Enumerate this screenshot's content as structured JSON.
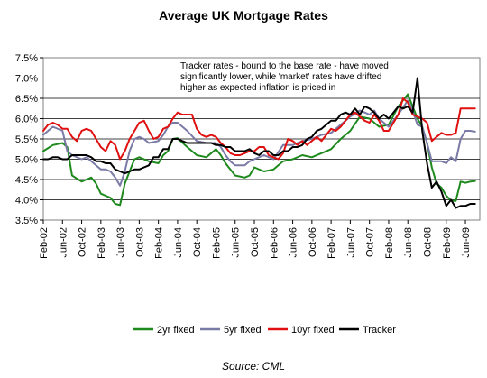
{
  "chart_data": {
    "type": "line",
    "title": "Average UK Mortgage Rates",
    "source": "Source: CML",
    "annotation": [
      "Tracker rates - bound to the base rate - have moved",
      "significantly lower, while 'market' rates have drifted",
      "higher as expected inflation is priced in"
    ],
    "ylim": [
      3.5,
      7.5
    ],
    "yticks": [
      "3.5%",
      "4.0%",
      "4.5%",
      "5.0%",
      "5.5%",
      "6.0%",
      "6.5%",
      "7.0%",
      "7.5%"
    ],
    "ytick_values": [
      3.5,
      4.0,
      4.5,
      5.0,
      5.5,
      6.0,
      6.5,
      7.0,
      7.5
    ],
    "xticks": [
      "Feb-02",
      "Jun-02",
      "Oct-02",
      "Feb-03",
      "Jun-03",
      "Oct-03",
      "Feb-04",
      "Jun-04",
      "Oct-04",
      "Feb-05",
      "Jun-05",
      "Oct-05",
      "Feb-06",
      "Jun-06",
      "Oct-06",
      "Feb-07",
      "Jun-07",
      "Oct-07",
      "Feb-08",
      "Jun-08",
      "Oct-08",
      "Feb-09",
      "Jun-09"
    ],
    "xtick_months": [
      0,
      4,
      8,
      12,
      16,
      20,
      24,
      28,
      32,
      36,
      40,
      44,
      48,
      52,
      56,
      60,
      64,
      68,
      72,
      76,
      80,
      84,
      88
    ],
    "x_month_range": [
      0,
      91
    ],
    "x_start": "Feb-02",
    "legend_position": "bottom",
    "series": [
      {
        "name": "2yr fixed",
        "color": "#1e8a1e",
        "values": [
          [
            0,
            5.2
          ],
          [
            2,
            5.35
          ],
          [
            4,
            5.4
          ],
          [
            5,
            5.3
          ],
          [
            6,
            4.6
          ],
          [
            8,
            4.45
          ],
          [
            9,
            4.5
          ],
          [
            10,
            4.55
          ],
          [
            11,
            4.4
          ],
          [
            12,
            4.15
          ],
          [
            13,
            4.1
          ],
          [
            14,
            4.05
          ],
          [
            15,
            3.9
          ],
          [
            16,
            3.87
          ],
          [
            17,
            4.4
          ],
          [
            18,
            4.7
          ],
          [
            19,
            5.0
          ],
          [
            20,
            5.05
          ],
          [
            22,
            4.95
          ],
          [
            24,
            4.9
          ],
          [
            25,
            5.1
          ],
          [
            26,
            5.2
          ],
          [
            27,
            5.5
          ],
          [
            28,
            5.52
          ],
          [
            30,
            5.3
          ],
          [
            32,
            5.1
          ],
          [
            34,
            5.05
          ],
          [
            36,
            5.25
          ],
          [
            37,
            5.1
          ],
          [
            38,
            4.9
          ],
          [
            39,
            4.75
          ],
          [
            40,
            4.6
          ],
          [
            42,
            4.55
          ],
          [
            43,
            4.6
          ],
          [
            44,
            4.8
          ],
          [
            46,
            4.7
          ],
          [
            48,
            4.75
          ],
          [
            50,
            4.95
          ],
          [
            52,
            5.0
          ],
          [
            54,
            5.1
          ],
          [
            56,
            5.05
          ],
          [
            58,
            5.15
          ],
          [
            60,
            5.25
          ],
          [
            62,
            5.5
          ],
          [
            64,
            5.7
          ],
          [
            66,
            6.05
          ],
          [
            68,
            6.0
          ],
          [
            70,
            5.8
          ],
          [
            72,
            5.85
          ],
          [
            74,
            6.3
          ],
          [
            76,
            6.6
          ],
          [
            77,
            6.3
          ],
          [
            78,
            6.0
          ],
          [
            79,
            5.8
          ],
          [
            80,
            5.4
          ],
          [
            81,
            4.8
          ],
          [
            82,
            4.4
          ],
          [
            83,
            4.3
          ],
          [
            84,
            4.1
          ],
          [
            85,
            3.98
          ],
          [
            86,
            3.97
          ],
          [
            87,
            4.45
          ],
          [
            88,
            4.42
          ],
          [
            89,
            4.45
          ],
          [
            90,
            4.46
          ]
        ]
      },
      {
        "name": "5yr fixed",
        "color": "#7a7aa6",
        "values": [
          [
            0,
            5.6
          ],
          [
            2,
            5.8
          ],
          [
            4,
            5.7
          ],
          [
            5,
            5.2
          ],
          [
            6,
            5.1
          ],
          [
            8,
            5.0
          ],
          [
            9,
            5.05
          ],
          [
            10,
            4.95
          ],
          [
            11,
            4.85
          ],
          [
            12,
            4.75
          ],
          [
            13,
            4.75
          ],
          [
            14,
            4.7
          ],
          [
            15,
            4.55
          ],
          [
            16,
            4.35
          ],
          [
            17,
            4.7
          ],
          [
            18,
            5.2
          ],
          [
            19,
            5.5
          ],
          [
            20,
            5.55
          ],
          [
            21,
            5.5
          ],
          [
            22,
            5.4
          ],
          [
            24,
            5.45
          ],
          [
            25,
            5.6
          ],
          [
            26,
            5.8
          ],
          [
            27,
            5.9
          ],
          [
            28,
            5.9
          ],
          [
            30,
            5.7
          ],
          [
            32,
            5.45
          ],
          [
            34,
            5.4
          ],
          [
            36,
            5.4
          ],
          [
            37,
            5.3
          ],
          [
            38,
            5.1
          ],
          [
            39,
            4.95
          ],
          [
            40,
            4.85
          ],
          [
            42,
            4.85
          ],
          [
            43,
            4.95
          ],
          [
            44,
            5.0
          ],
          [
            46,
            5.1
          ],
          [
            48,
            5.0
          ],
          [
            50,
            5.35
          ],
          [
            52,
            5.35
          ],
          [
            54,
            5.45
          ],
          [
            56,
            5.5
          ],
          [
            58,
            5.6
          ],
          [
            60,
            5.65
          ],
          [
            62,
            5.85
          ],
          [
            64,
            6.05
          ],
          [
            66,
            6.2
          ],
          [
            67,
            6.15
          ],
          [
            68,
            6.1
          ],
          [
            69,
            6.2
          ],
          [
            70,
            6.0
          ],
          [
            72,
            5.8
          ],
          [
            74,
            6.1
          ],
          [
            76,
            6.45
          ],
          [
            77,
            6.2
          ],
          [
            78,
            5.85
          ],
          [
            79,
            5.8
          ],
          [
            80,
            5.4
          ],
          [
            81,
            4.95
          ],
          [
            82,
            4.95
          ],
          [
            83,
            4.95
          ],
          [
            84,
            4.9
          ],
          [
            85,
            5.05
          ],
          [
            86,
            4.95
          ],
          [
            87,
            5.5
          ],
          [
            88,
            5.7
          ],
          [
            89,
            5.7
          ],
          [
            90,
            5.68
          ]
        ]
      },
      {
        "name": "10yr fixed",
        "color": "#e01010",
        "values": [
          [
            0,
            5.7
          ],
          [
            1,
            5.85
          ],
          [
            2,
            5.9
          ],
          [
            3,
            5.85
          ],
          [
            4,
            5.75
          ],
          [
            5,
            5.75
          ],
          [
            6,
            5.55
          ],
          [
            7,
            5.45
          ],
          [
            8,
            5.7
          ],
          [
            9,
            5.75
          ],
          [
            10,
            5.7
          ],
          [
            11,
            5.5
          ],
          [
            12,
            5.3
          ],
          [
            13,
            5.2
          ],
          [
            14,
            5.45
          ],
          [
            15,
            5.35
          ],
          [
            16,
            5.0
          ],
          [
            17,
            5.2
          ],
          [
            18,
            5.5
          ],
          [
            19,
            5.7
          ],
          [
            20,
            5.9
          ],
          [
            21,
            5.95
          ],
          [
            22,
            5.7
          ],
          [
            23,
            5.5
          ],
          [
            24,
            5.55
          ],
          [
            25,
            5.75
          ],
          [
            26,
            5.8
          ],
          [
            27,
            6.0
          ],
          [
            28,
            6.15
          ],
          [
            29,
            6.1
          ],
          [
            30,
            6.1
          ],
          [
            31,
            6.1
          ],
          [
            32,
            5.75
          ],
          [
            33,
            5.6
          ],
          [
            34,
            5.55
          ],
          [
            35,
            5.6
          ],
          [
            36,
            5.55
          ],
          [
            37,
            5.4
          ],
          [
            38,
            5.3
          ],
          [
            39,
            5.15
          ],
          [
            40,
            5.1
          ],
          [
            41,
            5.1
          ],
          [
            42,
            5.15
          ],
          [
            43,
            5.2
          ],
          [
            44,
            5.2
          ],
          [
            45,
            5.3
          ],
          [
            46,
            5.3
          ],
          [
            47,
            5.1
          ],
          [
            48,
            5.05
          ],
          [
            49,
            5.0
          ],
          [
            50,
            5.15
          ],
          [
            51,
            5.5
          ],
          [
            52,
            5.45
          ],
          [
            53,
            5.35
          ],
          [
            54,
            5.45
          ],
          [
            55,
            5.35
          ],
          [
            56,
            5.45
          ],
          [
            57,
            5.55
          ],
          [
            58,
            5.45
          ],
          [
            59,
            5.6
          ],
          [
            60,
            5.75
          ],
          [
            61,
            5.7
          ],
          [
            62,
            5.8
          ],
          [
            63,
            5.95
          ],
          [
            64,
            6.1
          ],
          [
            65,
            6.15
          ],
          [
            66,
            6.05
          ],
          [
            67,
            5.95
          ],
          [
            68,
            5.9
          ],
          [
            69,
            6.1
          ],
          [
            70,
            5.95
          ],
          [
            71,
            5.7
          ],
          [
            72,
            5.7
          ],
          [
            73,
            5.9
          ],
          [
            74,
            6.1
          ],
          [
            75,
            6.5
          ],
          [
            76,
            6.4
          ],
          [
            77,
            6.1
          ],
          [
            78,
            6.05
          ],
          [
            79,
            6.0
          ],
          [
            80,
            5.9
          ],
          [
            81,
            5.45
          ],
          [
            82,
            5.55
          ],
          [
            83,
            5.65
          ],
          [
            84,
            5.6
          ],
          [
            85,
            5.6
          ],
          [
            86,
            5.65
          ],
          [
            87,
            6.25
          ],
          [
            88,
            6.25
          ],
          [
            89,
            6.25
          ],
          [
            90,
            6.25
          ]
        ]
      },
      {
        "name": "Tracker",
        "color": "#000000",
        "values": [
          [
            0,
            5.0
          ],
          [
            1,
            5.0
          ],
          [
            2,
            5.05
          ],
          [
            3,
            5.05
          ],
          [
            4,
            5.0
          ],
          [
            5,
            5.0
          ],
          [
            6,
            5.1
          ],
          [
            7,
            5.1
          ],
          [
            8,
            5.1
          ],
          [
            9,
            5.1
          ],
          [
            10,
            5.05
          ],
          [
            11,
            4.95
          ],
          [
            12,
            4.95
          ],
          [
            13,
            4.9
          ],
          [
            14,
            4.9
          ],
          [
            15,
            4.75
          ],
          [
            16,
            4.7
          ],
          [
            17,
            4.65
          ],
          [
            18,
            4.7
          ],
          [
            19,
            4.75
          ],
          [
            20,
            4.75
          ],
          [
            21,
            4.8
          ],
          [
            22,
            4.85
          ],
          [
            23,
            5.05
          ],
          [
            24,
            5.05
          ],
          [
            25,
            5.25
          ],
          [
            26,
            5.25
          ],
          [
            27,
            5.5
          ],
          [
            28,
            5.5
          ],
          [
            29,
            5.45
          ],
          [
            30,
            5.4
          ],
          [
            31,
            5.4
          ],
          [
            32,
            5.4
          ],
          [
            33,
            5.4
          ],
          [
            34,
            5.4
          ],
          [
            35,
            5.4
          ],
          [
            36,
            5.35
          ],
          [
            37,
            5.35
          ],
          [
            38,
            5.3
          ],
          [
            39,
            5.3
          ],
          [
            40,
            5.2
          ],
          [
            41,
            5.2
          ],
          [
            42,
            5.2
          ],
          [
            43,
            5.25
          ],
          [
            44,
            5.15
          ],
          [
            45,
            5.1
          ],
          [
            46,
            5.2
          ],
          [
            47,
            5.2
          ],
          [
            48,
            5.1
          ],
          [
            49,
            5.1
          ],
          [
            50,
            5.2
          ],
          [
            51,
            5.2
          ],
          [
            52,
            5.3
          ],
          [
            53,
            5.3
          ],
          [
            54,
            5.35
          ],
          [
            55,
            5.5
          ],
          [
            56,
            5.55
          ],
          [
            57,
            5.7
          ],
          [
            58,
            5.75
          ],
          [
            59,
            5.85
          ],
          [
            60,
            5.95
          ],
          [
            61,
            5.95
          ],
          [
            62,
            6.1
          ],
          [
            63,
            6.15
          ],
          [
            64,
            6.1
          ],
          [
            65,
            6.25
          ],
          [
            66,
            6.1
          ],
          [
            67,
            6.3
          ],
          [
            68,
            6.25
          ],
          [
            69,
            6.15
          ],
          [
            70,
            6.0
          ],
          [
            71,
            6.1
          ],
          [
            72,
            6.0
          ],
          [
            73,
            6.15
          ],
          [
            74,
            6.3
          ],
          [
            75,
            6.25
          ],
          [
            76,
            6.3
          ],
          [
            77,
            6.15
          ],
          [
            78,
            7.0
          ],
          [
            79,
            5.7
          ],
          [
            80,
            4.9
          ],
          [
            81,
            4.3
          ],
          [
            82,
            4.45
          ],
          [
            83,
            4.2
          ],
          [
            84,
            3.85
          ],
          [
            85,
            4.0
          ],
          [
            86,
            3.8
          ],
          [
            87,
            3.85
          ],
          [
            88,
            3.85
          ],
          [
            89,
            3.9
          ],
          [
            90,
            3.9
          ]
        ]
      }
    ]
  }
}
